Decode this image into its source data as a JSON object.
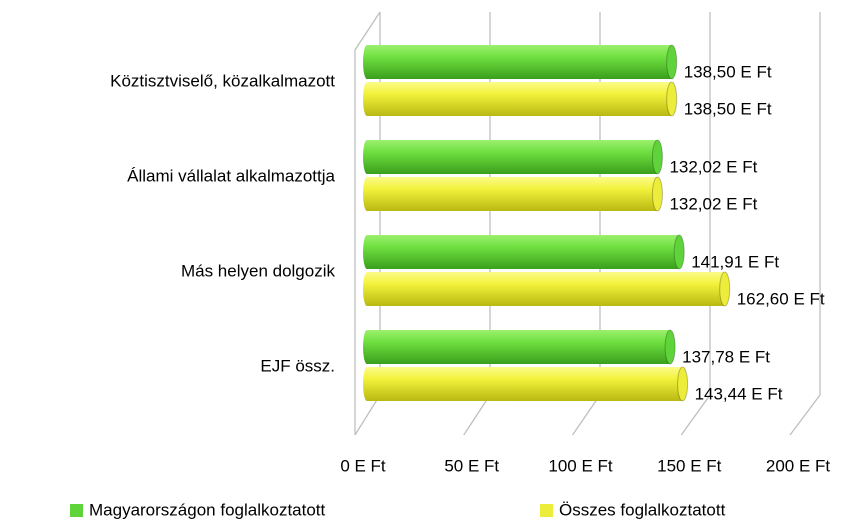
{
  "chart_data": {
    "type": "bar",
    "orientation": "horizontal",
    "categories": [
      "Köztisztviselő, közalkalmazott",
      "Állami vállalat alkalmazottja",
      "Más helyen dolgozik",
      "EJF össz."
    ],
    "series": [
      {
        "name": "Magyarországon foglalkoztatott",
        "color": "#5fd43a",
        "values": [
          138.5,
          132.02,
          141.91,
          137.78
        ],
        "value_labels": [
          "138,50 E Ft",
          "132,02 E Ft",
          "141,91 E Ft",
          "137,78 E Ft"
        ]
      },
      {
        "name": "Összes foglalkoztatott",
        "color": "#ecec3a",
        "values": [
          138.5,
          132.02,
          162.6,
          143.44
        ],
        "value_labels": [
          "138,50 E Ft",
          "132,02 E Ft",
          "162,60 E Ft",
          "143,44 E Ft"
        ]
      }
    ],
    "xlim": [
      0,
      200
    ],
    "xticks": [
      {
        "value": 0,
        "label": "0 E Ft"
      },
      {
        "value": 50,
        "label": "50 E Ft"
      },
      {
        "value": 100,
        "label": "100 E Ft"
      },
      {
        "value": 150,
        "label": "150 E Ft"
      },
      {
        "value": 200,
        "label": "200 E Ft"
      }
    ],
    "grid": true,
    "legend": "bottom"
  }
}
